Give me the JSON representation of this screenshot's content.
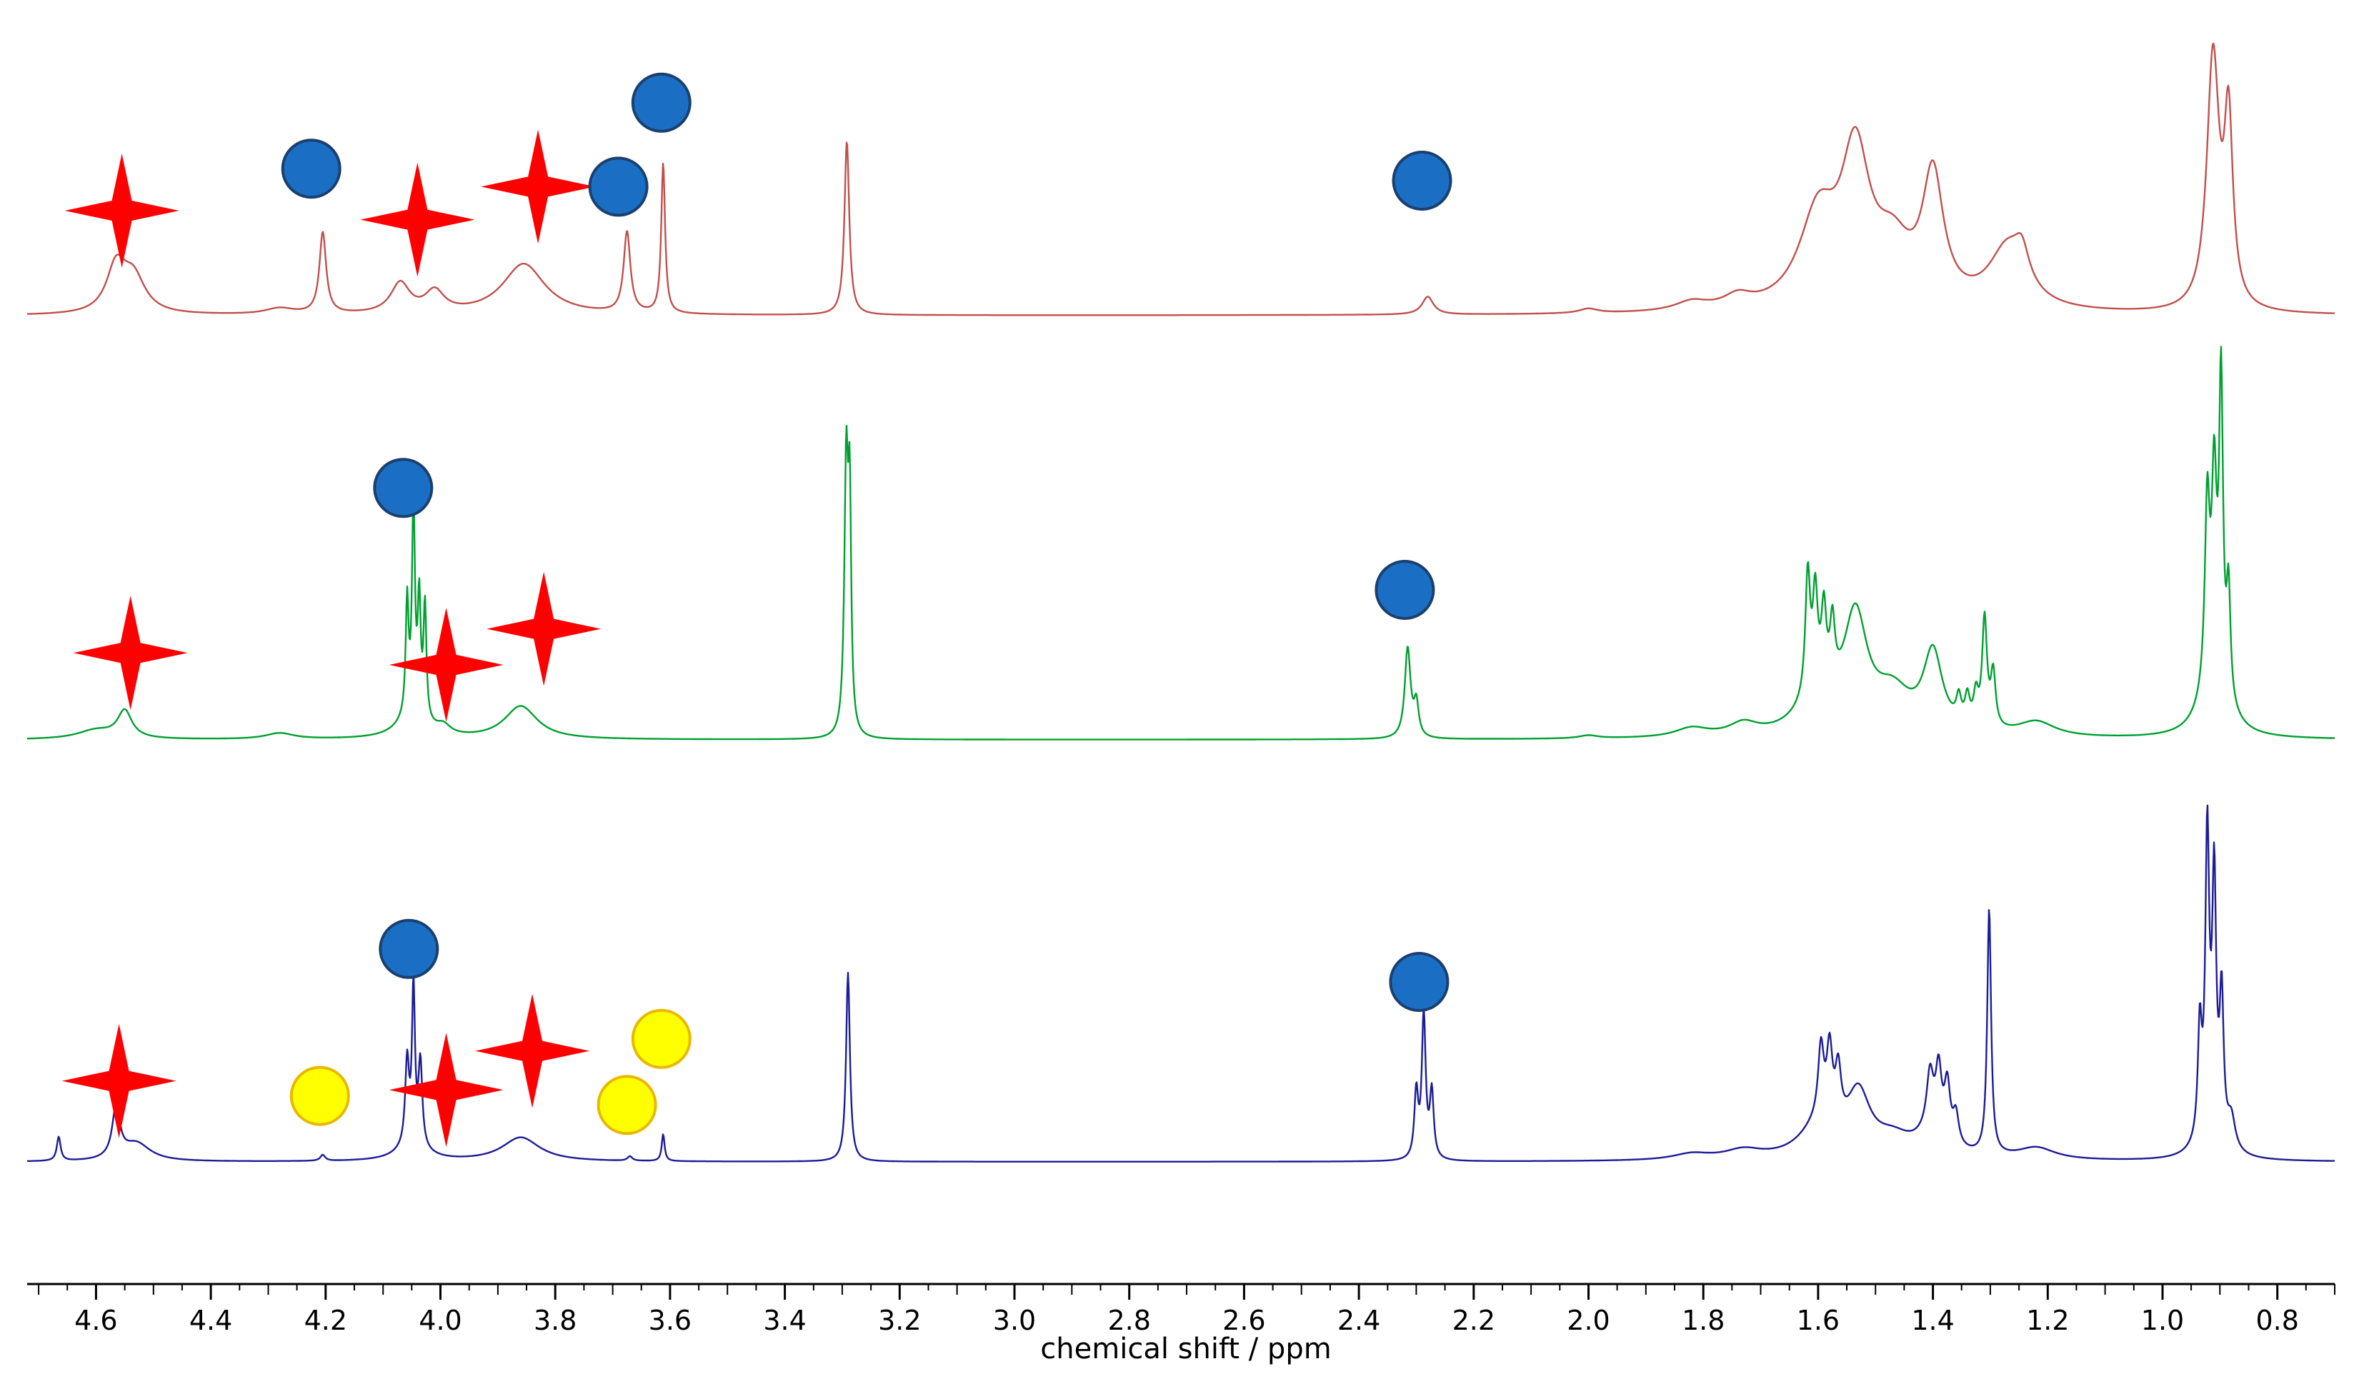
{
  "chart_data": {
    "type": "line",
    "xlabel": "chemical shift / ppm",
    "xlim": [
      4.72,
      0.7
    ],
    "x_reversed": true,
    "ticks": [
      4.6,
      4.4,
      4.2,
      4.0,
      3.8,
      3.6,
      3.4,
      3.2,
      3.0,
      2.8,
      2.6,
      2.4,
      2.2,
      2.0,
      1.8,
      1.6,
      1.4,
      1.2,
      1.0,
      0.8
    ],
    "tick_labels": [
      "4.6",
      "4.4",
      "4.2",
      "4.0",
      "3.8",
      "3.6",
      "3.4",
      "3.2",
      "3.0",
      "2.8",
      "2.6",
      "2.4",
      "2.2",
      "2.0",
      "1.8",
      "1.6",
      "1.4",
      "1.2",
      "1.0",
      "0.8"
    ],
    "y_axis_shown": false,
    "grid": false,
    "legend": "none",
    "series": [
      {
        "color": "#c0504d",
        "intensity_max": 100,
        "peaks": [
          {
            "x": 4.565,
            "h": 15,
            "w": 0.02
          },
          {
            "x": 4.535,
            "h": 12,
            "w": 0.025
          },
          {
            "x": 4.28,
            "h": 2,
            "w": 0.03
          },
          {
            "x": 4.205,
            "h": 27,
            "w": 0.007
          },
          {
            "x": 4.07,
            "h": 10,
            "w": 0.02
          },
          {
            "x": 4.01,
            "h": 7,
            "w": 0.02
          },
          {
            "x": 3.855,
            "h": 17,
            "w": 0.045
          },
          {
            "x": 3.675,
            "h": 27,
            "w": 0.007
          },
          {
            "x": 3.612,
            "h": 50,
            "w": 0.004
          },
          {
            "x": 3.292,
            "h": 58,
            "w": 0.005
          },
          {
            "x": 2.28,
            "h": 6,
            "w": 0.012
          },
          {
            "x": 2.0,
            "h": 1.5,
            "w": 0.02
          },
          {
            "x": 1.82,
            "h": 3,
            "w": 0.035
          },
          {
            "x": 1.74,
            "h": 4,
            "w": 0.03
          },
          {
            "x": 1.6,
            "h": 30,
            "w": 0.04
          },
          {
            "x": 1.535,
            "h": 48,
            "w": 0.03
          },
          {
            "x": 1.47,
            "h": 18,
            "w": 0.04
          },
          {
            "x": 1.4,
            "h": 42,
            "w": 0.022
          },
          {
            "x": 1.27,
            "h": 20,
            "w": 0.04
          },
          {
            "x": 1.245,
            "h": 10,
            "w": 0.015
          },
          {
            "x": 0.912,
            "h": 84,
            "w": 0.013
          },
          {
            "x": 0.885,
            "h": 60,
            "w": 0.009
          }
        ]
      },
      {
        "color": "#00a030",
        "intensity_max": 100,
        "peaks": [
          {
            "x": 4.55,
            "h": 9,
            "w": 0.015
          },
          {
            "x": 4.6,
            "h": 3,
            "w": 0.04
          },
          {
            "x": 4.28,
            "h": 2,
            "w": 0.03
          },
          {
            "x": 4.058,
            "h": 38,
            "w": 0.003
          },
          {
            "x": 4.047,
            "h": 70,
            "w": 0.003
          },
          {
            "x": 4.037,
            "h": 38,
            "w": 0.003
          },
          {
            "x": 4.027,
            "h": 38,
            "w": 0.003
          },
          {
            "x": 4.05,
            "h": 7,
            "w": 0.03
          },
          {
            "x": 3.995,
            "h": 3,
            "w": 0.015
          },
          {
            "x": 3.86,
            "h": 11,
            "w": 0.035
          },
          {
            "x": 3.293,
            "h": 90,
            "w": 0.004
          },
          {
            "x": 3.287,
            "h": 70,
            "w": 0.003
          },
          {
            "x": 2.315,
            "h": 30,
            "w": 0.006
          },
          {
            "x": 2.3,
            "h": 11,
            "w": 0.005
          },
          {
            "x": 2.0,
            "h": 1,
            "w": 0.02
          },
          {
            "x": 1.82,
            "h": 3,
            "w": 0.035
          },
          {
            "x": 1.73,
            "h": 4,
            "w": 0.03
          },
          {
            "x": 1.618,
            "h": 40,
            "w": 0.005
          },
          {
            "x": 1.605,
            "h": 30,
            "w": 0.005
          },
          {
            "x": 1.59,
            "h": 24,
            "w": 0.005
          },
          {
            "x": 1.575,
            "h": 20,
            "w": 0.005
          },
          {
            "x": 1.6,
            "h": 12,
            "w": 0.04
          },
          {
            "x": 1.535,
            "h": 37,
            "w": 0.025
          },
          {
            "x": 1.47,
            "h": 13,
            "w": 0.04
          },
          {
            "x": 1.4,
            "h": 26,
            "w": 0.02
          },
          {
            "x": 1.355,
            "h": 8,
            "w": 0.005
          },
          {
            "x": 1.34,
            "h": 9,
            "w": 0.005
          },
          {
            "x": 1.325,
            "h": 10,
            "w": 0.005
          },
          {
            "x": 1.31,
            "h": 36,
            "w": 0.005
          },
          {
            "x": 1.295,
            "h": 18,
            "w": 0.005
          },
          {
            "x": 1.22,
            "h": 5,
            "w": 0.04
          },
          {
            "x": 0.922,
            "h": 60,
            "w": 0.005
          },
          {
            "x": 0.91,
            "h": 62,
            "w": 0.005
          },
          {
            "x": 0.898,
            "h": 100,
            "w": 0.004
          },
          {
            "x": 0.885,
            "h": 36,
            "w": 0.004
          },
          {
            "x": 0.91,
            "h": 20,
            "w": 0.025
          }
        ]
      },
      {
        "color": "#1c1c96",
        "intensity_max": 100,
        "peaks": [
          {
            "x": 4.565,
            "h": 17,
            "w": 0.008
          },
          {
            "x": 4.53,
            "h": 6,
            "w": 0.03
          },
          {
            "x": 4.665,
            "h": 8,
            "w": 0.004
          },
          {
            "x": 4.205,
            "h": 2,
            "w": 0.005
          },
          {
            "x": 4.058,
            "h": 28,
            "w": 0.004
          },
          {
            "x": 4.047,
            "h": 52,
            "w": 0.003
          },
          {
            "x": 4.035,
            "h": 28,
            "w": 0.004
          },
          {
            "x": 4.05,
            "h": 5,
            "w": 0.03
          },
          {
            "x": 3.86,
            "h": 8,
            "w": 0.04
          },
          {
            "x": 3.67,
            "h": 1.5,
            "w": 0.005
          },
          {
            "x": 3.612,
            "h": 9,
            "w": 0.003
          },
          {
            "x": 3.29,
            "h": 63,
            "w": 0.004
          },
          {
            "x": 2.3,
            "h": 22,
            "w": 0.004
          },
          {
            "x": 2.287,
            "h": 48,
            "w": 0.004
          },
          {
            "x": 2.273,
            "h": 22,
            "w": 0.004
          },
          {
            "x": 1.82,
            "h": 2,
            "w": 0.04
          },
          {
            "x": 1.73,
            "h": 3,
            "w": 0.04
          },
          {
            "x": 1.595,
            "h": 24,
            "w": 0.006
          },
          {
            "x": 1.58,
            "h": 24,
            "w": 0.006
          },
          {
            "x": 1.565,
            "h": 18,
            "w": 0.006
          },
          {
            "x": 1.6,
            "h": 10,
            "w": 0.04
          },
          {
            "x": 1.53,
            "h": 20,
            "w": 0.025
          },
          {
            "x": 1.47,
            "h": 6,
            "w": 0.04
          },
          {
            "x": 1.405,
            "h": 18,
            "w": 0.007
          },
          {
            "x": 1.39,
            "h": 20,
            "w": 0.006
          },
          {
            "x": 1.375,
            "h": 18,
            "w": 0.006
          },
          {
            "x": 1.36,
            "h": 10,
            "w": 0.006
          },
          {
            "x": 1.4,
            "h": 8,
            "w": 0.03
          },
          {
            "x": 1.302,
            "h": 82,
            "w": 0.004
          },
          {
            "x": 1.22,
            "h": 4,
            "w": 0.04
          },
          {
            "x": 0.935,
            "h": 36,
            "w": 0.004
          },
          {
            "x": 0.922,
            "h": 96,
            "w": 0.004
          },
          {
            "x": 0.91,
            "h": 80,
            "w": 0.004
          },
          {
            "x": 0.897,
            "h": 46,
            "w": 0.004
          },
          {
            "x": 0.88,
            "h": 10,
            "w": 0.008
          },
          {
            "x": 0.915,
            "h": 12,
            "w": 0.02
          }
        ]
      }
    ],
    "annotations": [
      {
        "series": 0,
        "shape": "star",
        "color": "#ff0000",
        "x": 4.555,
        "y": 35
      },
      {
        "series": 0,
        "shape": "circle",
        "color": "#1a6fc4",
        "x": 4.225,
        "y": 49
      },
      {
        "series": 0,
        "shape": "star",
        "color": "#ff0000",
        "x": 4.04,
        "y": 32
      },
      {
        "series": 0,
        "shape": "star",
        "color": "#ff0000",
        "x": 3.83,
        "y": 43
      },
      {
        "series": 0,
        "shape": "circle",
        "color": "#1a6fc4",
        "x": 3.69,
        "y": 43
      },
      {
        "series": 0,
        "shape": "circle",
        "color": "#1a6fc4",
        "x": 3.615,
        "y": 71
      },
      {
        "series": 0,
        "shape": "circle",
        "color": "#1a6fc4",
        "x": 2.29,
        "y": 45
      },
      {
        "series": 1,
        "shape": "circle",
        "color": "#1a6fc4",
        "x": 4.065,
        "y": 84
      },
      {
        "series": 1,
        "shape": "star",
        "color": "#ff0000",
        "x": 4.54,
        "y": 29
      },
      {
        "series": 1,
        "shape": "star",
        "color": "#ff0000",
        "x": 3.99,
        "y": 25
      },
      {
        "series": 1,
        "shape": "star",
        "color": "#ff0000",
        "x": 3.82,
        "y": 37
      },
      {
        "series": 1,
        "shape": "circle",
        "color": "#1a6fc4",
        "x": 2.32,
        "y": 50
      },
      {
        "series": 2,
        "shape": "circle",
        "color": "#1a6fc4",
        "x": 4.055,
        "y": 71
      },
      {
        "series": 2,
        "shape": "circle",
        "color": "#1a6fc4",
        "x": 2.295,
        "y": 60
      },
      {
        "series": 2,
        "shape": "star",
        "color": "#ff0000",
        "x": 4.56,
        "y": 27
      },
      {
        "series": 2,
        "shape": "star",
        "color": "#ff0000",
        "x": 3.99,
        "y": 24
      },
      {
        "series": 2,
        "shape": "star",
        "color": "#ff0000",
        "x": 3.84,
        "y": 37
      },
      {
        "series": 2,
        "shape": "circle",
        "color": "#ffff00",
        "x": 4.21,
        "y": 22
      },
      {
        "series": 2,
        "shape": "circle",
        "color": "#ffff00",
        "x": 3.675,
        "y": 19
      },
      {
        "series": 2,
        "shape": "circle",
        "color": "#ffff00",
        "x": 3.615,
        "y": 41
      }
    ]
  }
}
